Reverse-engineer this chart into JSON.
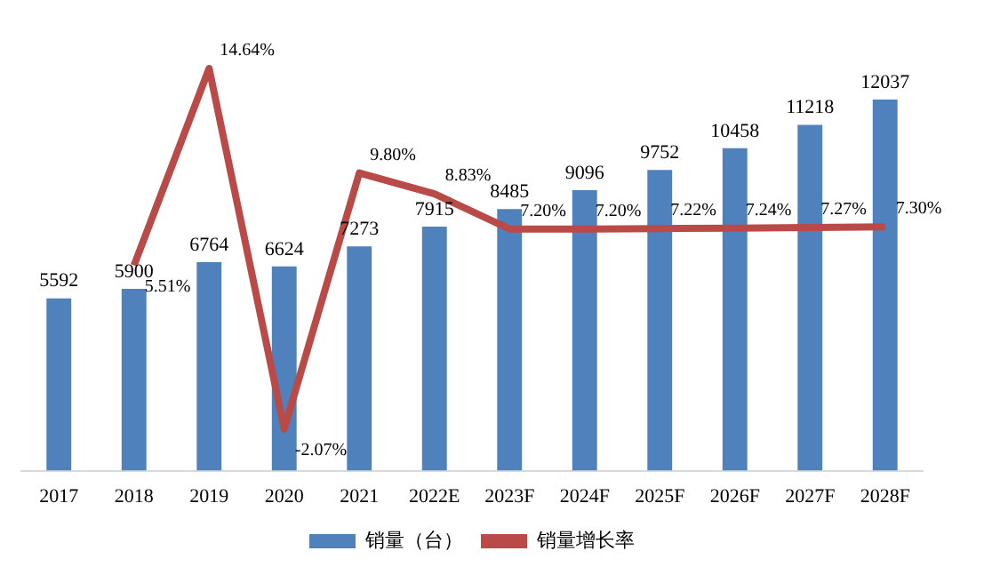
{
  "chart_data": {
    "type": "bar",
    "categories": [
      "2017",
      "2018",
      "2019",
      "2020",
      "2021",
      "2022E",
      "2023F",
      "2024F",
      "2025F",
      "2026F",
      "2027F",
      "2028F"
    ],
    "series": [
      {
        "name": "销量（台）",
        "color": "#4f81bd",
        "values": [
          5592,
          5900,
          6764,
          6624,
          7273,
          7915,
          8485,
          9096,
          9752,
          10458,
          11218,
          12037
        ]
      },
      {
        "name": "销量增长率",
        "type": "line",
        "axis": "y2",
        "color": "#b94a48",
        "values": [
          null,
          5.51,
          14.64,
          -2.07,
          9.8,
          8.83,
          7.2,
          7.2,
          7.22,
          7.24,
          7.27,
          7.3
        ],
        "value_labels": [
          null,
          "5.51%",
          "14.64%",
          "-2.07%",
          "9.80%",
          "8.83%",
          "7.20%",
          "7.20%",
          "7.22%",
          "7.24%",
          "7.27%",
          "7.30%"
        ]
      }
    ],
    "data_labels": true,
    "legend": "bottom"
  }
}
